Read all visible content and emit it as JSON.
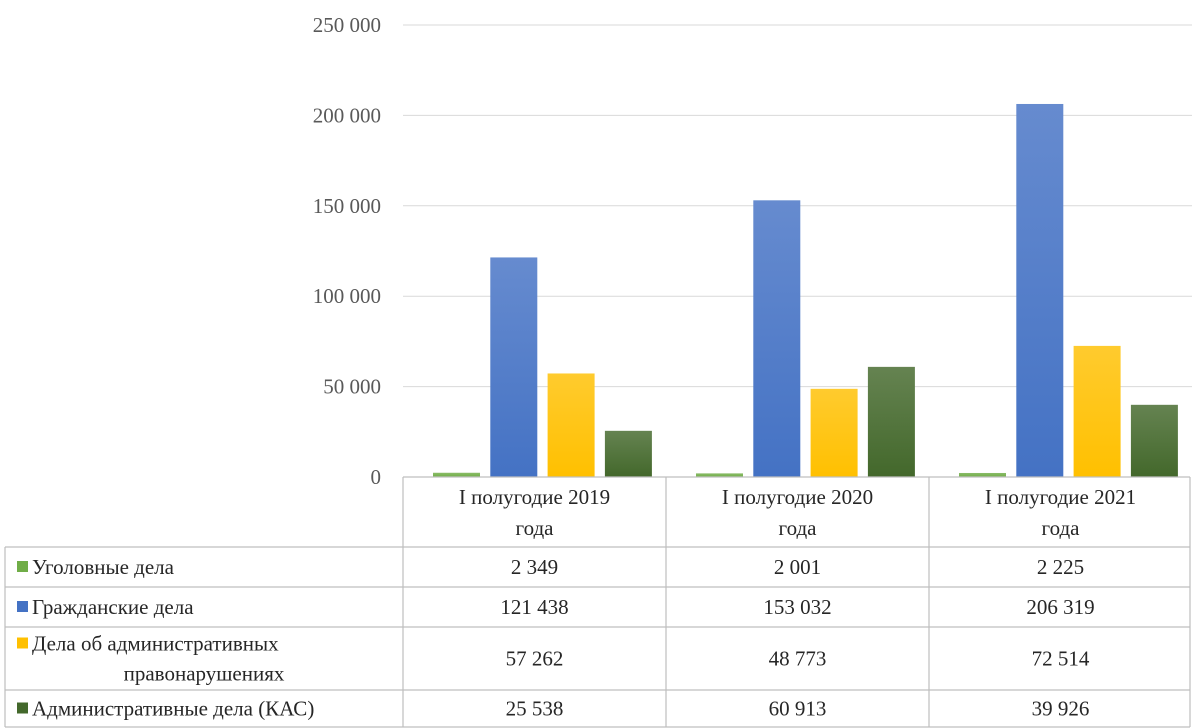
{
  "chart_data": {
    "type": "bar",
    "categories": [
      [
        "I полугодие 2019",
        "года"
      ],
      [
        "I полугодие 2020",
        "года"
      ],
      [
        "I полугодие 2021",
        "года"
      ]
    ],
    "ylim": [
      0,
      250000
    ],
    "yticks": [
      "0",
      "50 000",
      "100 000",
      "150 000",
      "200 000",
      "250 000"
    ],
    "ytick_values": [
      0,
      50000,
      100000,
      150000,
      200000,
      250000
    ],
    "grid": true,
    "legend": "data-table",
    "series": [
      {
        "name": [
          "Уголовные дела"
        ],
        "values": [
          2349,
          2001,
          2225
        ],
        "labels": [
          "2 349",
          "2 001",
          "2 225"
        ],
        "color": "#70ad47"
      },
      {
        "name": [
          "Гражданские дела"
        ],
        "values": [
          121438,
          153032,
          206319
        ],
        "labels": [
          "121 438",
          "153 032",
          "206 319"
        ],
        "color": "#4472c4"
      },
      {
        "name": [
          "Дела об административных",
          "правонарушениях"
        ],
        "values": [
          57262,
          48773,
          72514
        ],
        "labels": [
          "57 262",
          "48 773",
          "72 514"
        ],
        "color": "#ffc000"
      },
      {
        "name": [
          "Административные дела (КАС)"
        ],
        "values": [
          25538,
          60913,
          39926
        ],
        "labels": [
          "25 538",
          "60 913",
          "39 926"
        ],
        "color": "#43682b"
      }
    ]
  }
}
